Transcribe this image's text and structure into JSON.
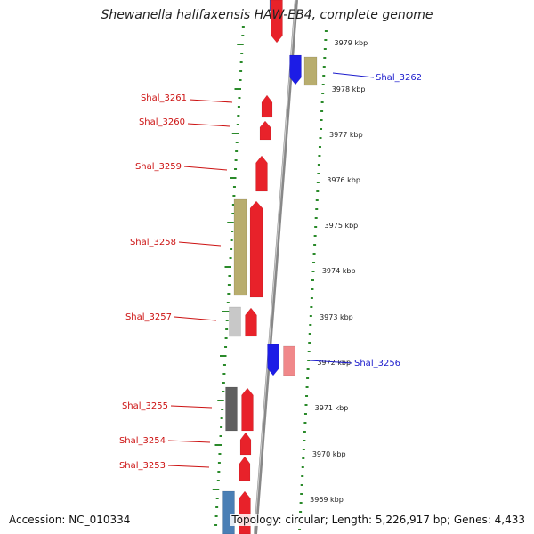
{
  "title": "Shewanella halifaxensis HAW-EB4, complete genome",
  "accession_text": "Accession: NC_010334",
  "summary_text": "Topology: circular; Length: 5,226,917 bp; Genes: 4,433",
  "colors": {
    "forward_cds": "#e8222a",
    "reverse_cds": "#1c1ce6",
    "pink_gene": "#f0888a",
    "olive_gene": "#b8ad6e",
    "gray_gene": "#c8c8c8",
    "dark_gray_gene": "#606060",
    "steel_blue_gene": "#4a7fb5",
    "label_red": "#cc1111",
    "label_blue": "#1a1acc",
    "tick_green": "#2a8a2a",
    "backbone": "#888888"
  },
  "ruler_kbp": [
    "3979 kbp",
    "3978 kbp",
    "3977 kbp",
    "3976 kbp",
    "3975 kbp",
    "3974 kbp",
    "3973 kbp",
    "3972 kbp",
    "3971 kbp",
    "3970 kbp",
    "3969 kbp"
  ],
  "gene_labels": [
    {
      "name": "Shal_3262",
      "side": "right"
    },
    {
      "name": "Shal_3261",
      "side": "left"
    },
    {
      "name": "Shal_3260",
      "side": "left"
    },
    {
      "name": "Shal_3259",
      "side": "left"
    },
    {
      "name": "Shal_3258",
      "side": "left"
    },
    {
      "name": "Shal_3257",
      "side": "left"
    },
    {
      "name": "Shal_3256",
      "side": "right"
    },
    {
      "name": "Shal_3255",
      "side": "left"
    },
    {
      "name": "Shal_3254",
      "side": "left"
    },
    {
      "name": "Shal_3253",
      "side": "left"
    }
  ]
}
